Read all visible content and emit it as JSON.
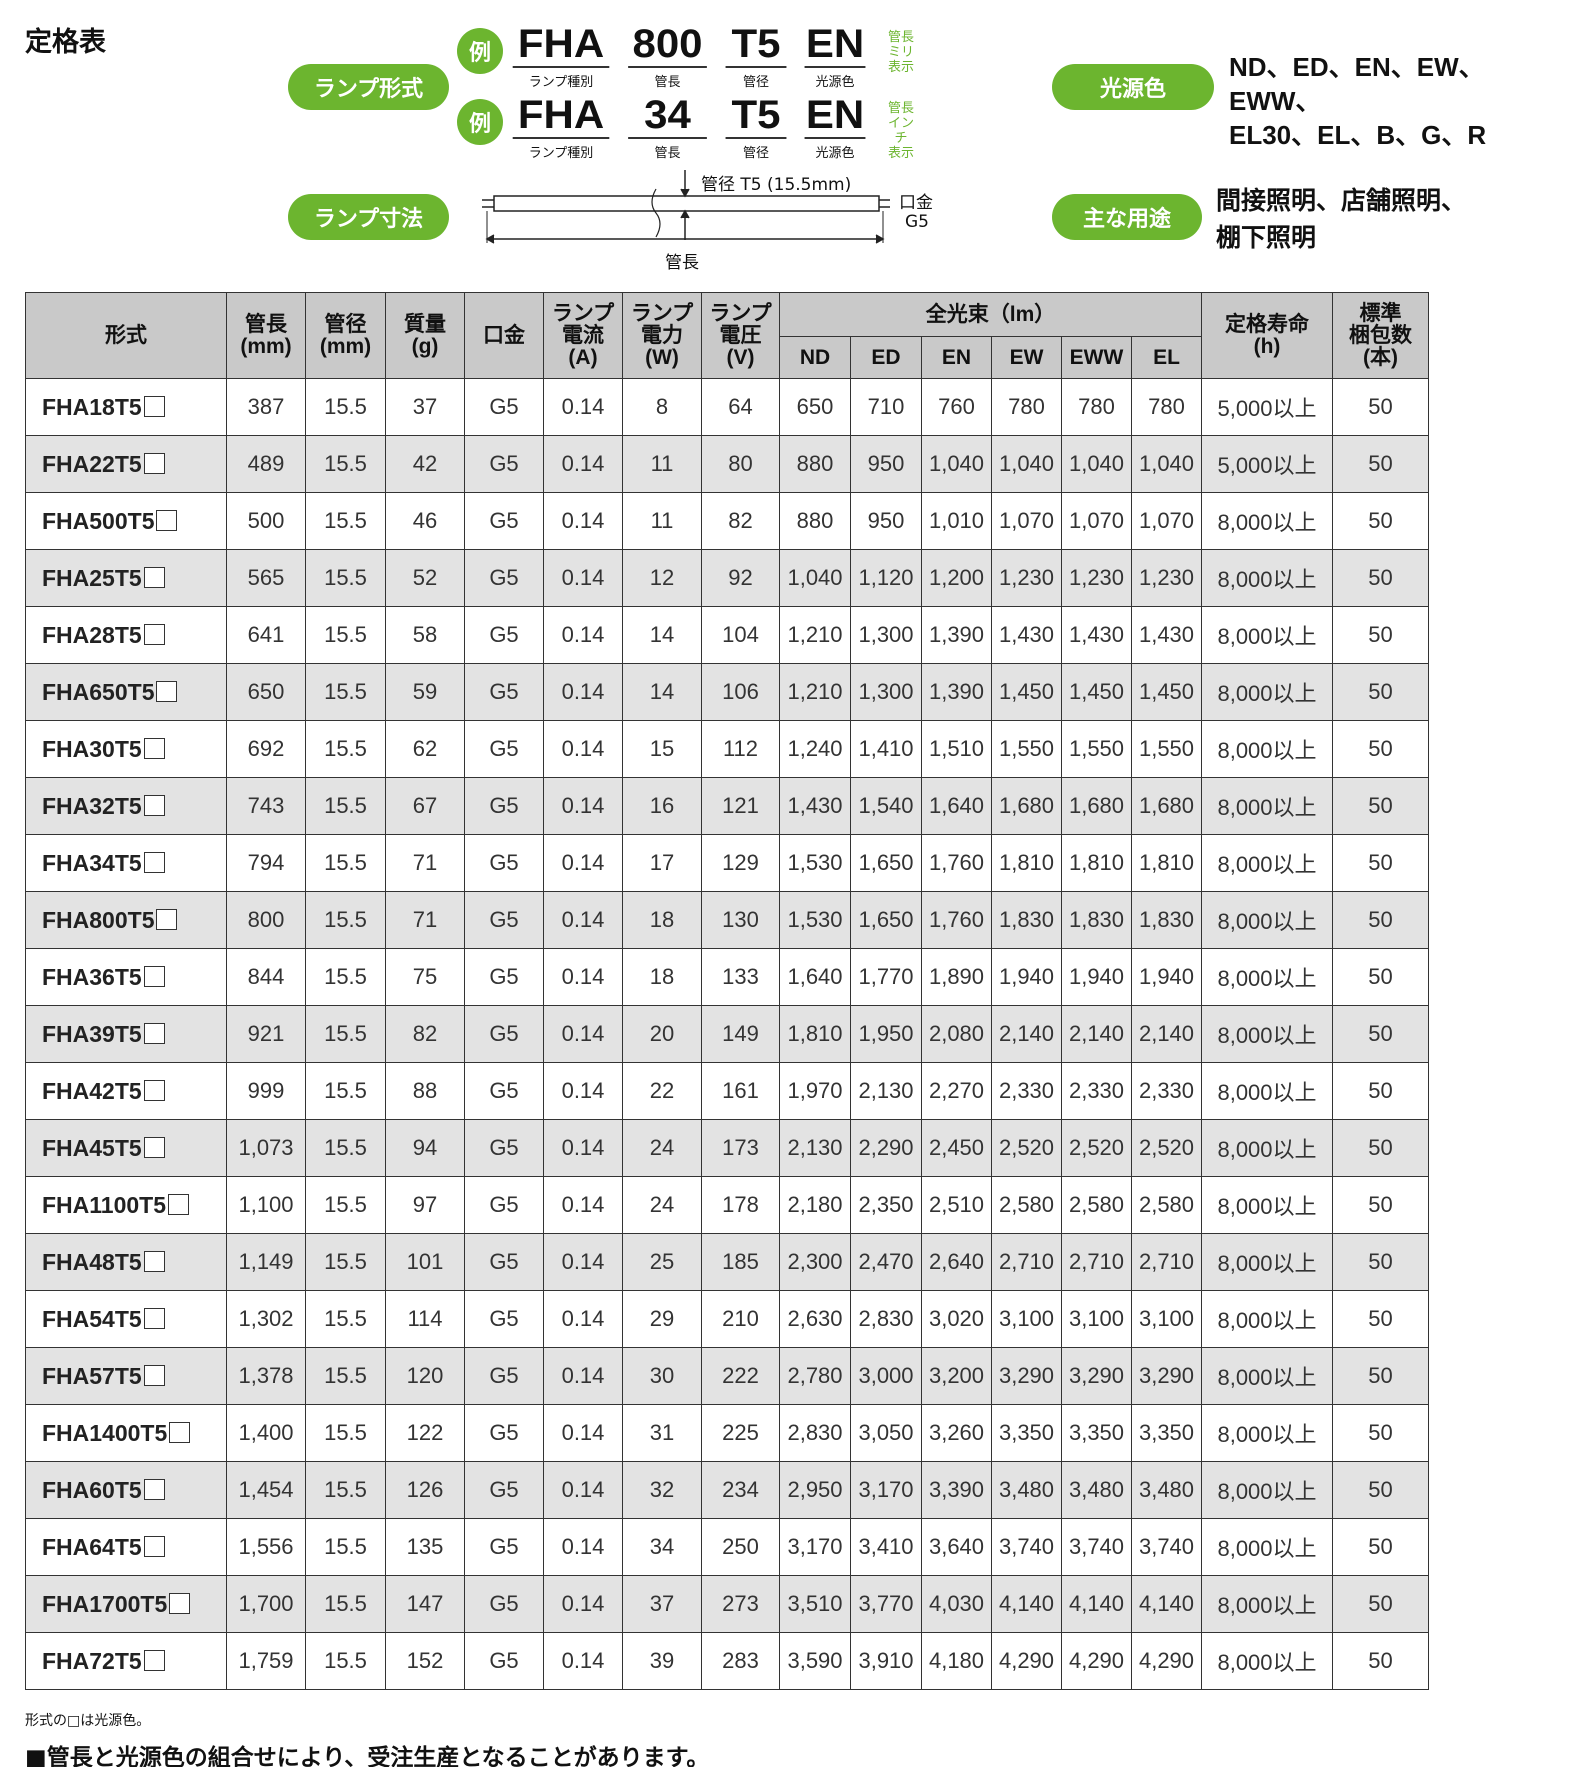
{
  "title": "定格表",
  "labels": {
    "lamp_type": "ランプ形式",
    "lamp_dim": "ランプ寸法",
    "light_color": "光源色",
    "usage": "主な用途"
  },
  "examples": [
    {
      "badge": "例",
      "parts": [
        {
          "code": "FHA",
          "label": "ランプ種別"
        },
        {
          "code": "800",
          "label": "管長"
        },
        {
          "code": "T5",
          "label": "管径"
        },
        {
          "code": "EN",
          "label": "光源色"
        }
      ],
      "note": [
        "管長",
        "ミリ",
        "表示"
      ]
    },
    {
      "badge": "例",
      "parts": [
        {
          "code": "FHA",
          "label": "ランプ種別"
        },
        {
          "code": "34",
          "label": "管長"
        },
        {
          "code": "T5",
          "label": "管径"
        },
        {
          "code": "EN",
          "label": "光源色"
        }
      ],
      "note": [
        "管長",
        "インチ",
        "表示"
      ]
    }
  ],
  "diagram": {
    "diameter": "管径 T5 (15.5mm)",
    "length": "管長",
    "base_label": "口金",
    "base_value": "G5"
  },
  "light_colors": [
    "ND、ED、EN、EW、EWW、",
    "EL30、EL、B、G、R"
  ],
  "usage": [
    "間接照明、店舗照明、",
    "棚下照明"
  ],
  "colors": {
    "accent": "#6cb52f",
    "header": "#c9c9c9",
    "row_alt": "#e3e3e3"
  },
  "table": {
    "headers": {
      "model": "形式",
      "length": [
        "管長",
        "(mm)"
      ],
      "diameter": [
        "管径",
        "(mm)"
      ],
      "mass": [
        "質量",
        "(g)"
      ],
      "base": "口金",
      "current": [
        "ランプ",
        "電流",
        "(A)"
      ],
      "power": [
        "ランプ",
        "電力",
        "(W)"
      ],
      "voltage": [
        "ランプ",
        "電圧",
        "(V)"
      ],
      "flux": "全光束（lm）",
      "flux_cols": [
        "ND",
        "ED",
        "EN",
        "EW",
        "EWW",
        "EL"
      ],
      "life": [
        "定格寿命",
        "(h)"
      ],
      "pack": [
        "標準",
        "梱包数",
        "(本)"
      ]
    },
    "rows": [
      [
        "FHA18T5",
        "387",
        "15.5",
        "37",
        "G5",
        "0.14",
        "8",
        "64",
        "650",
        "710",
        "760",
        "780",
        "780",
        "780",
        "5,000以上",
        "50"
      ],
      [
        "FHA22T5",
        "489",
        "15.5",
        "42",
        "G5",
        "0.14",
        "11",
        "80",
        "880",
        "950",
        "1,040",
        "1,040",
        "1,040",
        "1,040",
        "5,000以上",
        "50"
      ],
      [
        "FHA500T5",
        "500",
        "15.5",
        "46",
        "G5",
        "0.14",
        "11",
        "82",
        "880",
        "950",
        "1,010",
        "1,070",
        "1,070",
        "1,070",
        "8,000以上",
        "50"
      ],
      [
        "FHA25T5",
        "565",
        "15.5",
        "52",
        "G5",
        "0.14",
        "12",
        "92",
        "1,040",
        "1,120",
        "1,200",
        "1,230",
        "1,230",
        "1,230",
        "8,000以上",
        "50"
      ],
      [
        "FHA28T5",
        "641",
        "15.5",
        "58",
        "G5",
        "0.14",
        "14",
        "104",
        "1,210",
        "1,300",
        "1,390",
        "1,430",
        "1,430",
        "1,430",
        "8,000以上",
        "50"
      ],
      [
        "FHA650T5",
        "650",
        "15.5",
        "59",
        "G5",
        "0.14",
        "14",
        "106",
        "1,210",
        "1,300",
        "1,390",
        "1,450",
        "1,450",
        "1,450",
        "8,000以上",
        "50"
      ],
      [
        "FHA30T5",
        "692",
        "15.5",
        "62",
        "G5",
        "0.14",
        "15",
        "112",
        "1,240",
        "1,410",
        "1,510",
        "1,550",
        "1,550",
        "1,550",
        "8,000以上",
        "50"
      ],
      [
        "FHA32T5",
        "743",
        "15.5",
        "67",
        "G5",
        "0.14",
        "16",
        "121",
        "1,430",
        "1,540",
        "1,640",
        "1,680",
        "1,680",
        "1,680",
        "8,000以上",
        "50"
      ],
      [
        "FHA34T5",
        "794",
        "15.5",
        "71",
        "G5",
        "0.14",
        "17",
        "129",
        "1,530",
        "1,650",
        "1,760",
        "1,810",
        "1,810",
        "1,810",
        "8,000以上",
        "50"
      ],
      [
        "FHA800T5",
        "800",
        "15.5",
        "71",
        "G5",
        "0.14",
        "18",
        "130",
        "1,530",
        "1,650",
        "1,760",
        "1,830",
        "1,830",
        "1,830",
        "8,000以上",
        "50"
      ],
      [
        "FHA36T5",
        "844",
        "15.5",
        "75",
        "G5",
        "0.14",
        "18",
        "133",
        "1,640",
        "1,770",
        "1,890",
        "1,940",
        "1,940",
        "1,940",
        "8,000以上",
        "50"
      ],
      [
        "FHA39T5",
        "921",
        "15.5",
        "82",
        "G5",
        "0.14",
        "20",
        "149",
        "1,810",
        "1,950",
        "2,080",
        "2,140",
        "2,140",
        "2,140",
        "8,000以上",
        "50"
      ],
      [
        "FHA42T5",
        "999",
        "15.5",
        "88",
        "G5",
        "0.14",
        "22",
        "161",
        "1,970",
        "2,130",
        "2,270",
        "2,330",
        "2,330",
        "2,330",
        "8,000以上",
        "50"
      ],
      [
        "FHA45T5",
        "1,073",
        "15.5",
        "94",
        "G5",
        "0.14",
        "24",
        "173",
        "2,130",
        "2,290",
        "2,450",
        "2,520",
        "2,520",
        "2,520",
        "8,000以上",
        "50"
      ],
      [
        "FHA1100T5",
        "1,100",
        "15.5",
        "97",
        "G5",
        "0.14",
        "24",
        "178",
        "2,180",
        "2,350",
        "2,510",
        "2,580",
        "2,580",
        "2,580",
        "8,000以上",
        "50"
      ],
      [
        "FHA48T5",
        "1,149",
        "15.5",
        "101",
        "G5",
        "0.14",
        "25",
        "185",
        "2,300",
        "2,470",
        "2,640",
        "2,710",
        "2,710",
        "2,710",
        "8,000以上",
        "50"
      ],
      [
        "FHA54T5",
        "1,302",
        "15.5",
        "114",
        "G5",
        "0.14",
        "29",
        "210",
        "2,630",
        "2,830",
        "3,020",
        "3,100",
        "3,100",
        "3,100",
        "8,000以上",
        "50"
      ],
      [
        "FHA57T5",
        "1,378",
        "15.5",
        "120",
        "G5",
        "0.14",
        "30",
        "222",
        "2,780",
        "3,000",
        "3,200",
        "3,290",
        "3,290",
        "3,290",
        "8,000以上",
        "50"
      ],
      [
        "FHA1400T5",
        "1,400",
        "15.5",
        "122",
        "G5",
        "0.14",
        "31",
        "225",
        "2,830",
        "3,050",
        "3,260",
        "3,350",
        "3,350",
        "3,350",
        "8,000以上",
        "50"
      ],
      [
        "FHA60T5",
        "1,454",
        "15.5",
        "126",
        "G5",
        "0.14",
        "32",
        "234",
        "2,950",
        "3,170",
        "3,390",
        "3,480",
        "3,480",
        "3,480",
        "8,000以上",
        "50"
      ],
      [
        "FHA64T5",
        "1,556",
        "15.5",
        "135",
        "G5",
        "0.14",
        "34",
        "250",
        "3,170",
        "3,410",
        "3,640",
        "3,740",
        "3,740",
        "3,740",
        "8,000以上",
        "50"
      ],
      [
        "FHA1700T5",
        "1,700",
        "15.5",
        "147",
        "G5",
        "0.14",
        "37",
        "273",
        "3,510",
        "3,770",
        "4,030",
        "4,140",
        "4,140",
        "4,140",
        "8,000以上",
        "50"
      ],
      [
        "FHA72T5",
        "1,759",
        "15.5",
        "152",
        "G5",
        "0.14",
        "39",
        "283",
        "3,590",
        "3,910",
        "4,180",
        "4,290",
        "4,290",
        "4,290",
        "8,000以上",
        "50"
      ]
    ]
  },
  "footnote": "形式の□は光源色。",
  "notice": "■管長と光源色の組合せにより、受注生産となることがあります。"
}
